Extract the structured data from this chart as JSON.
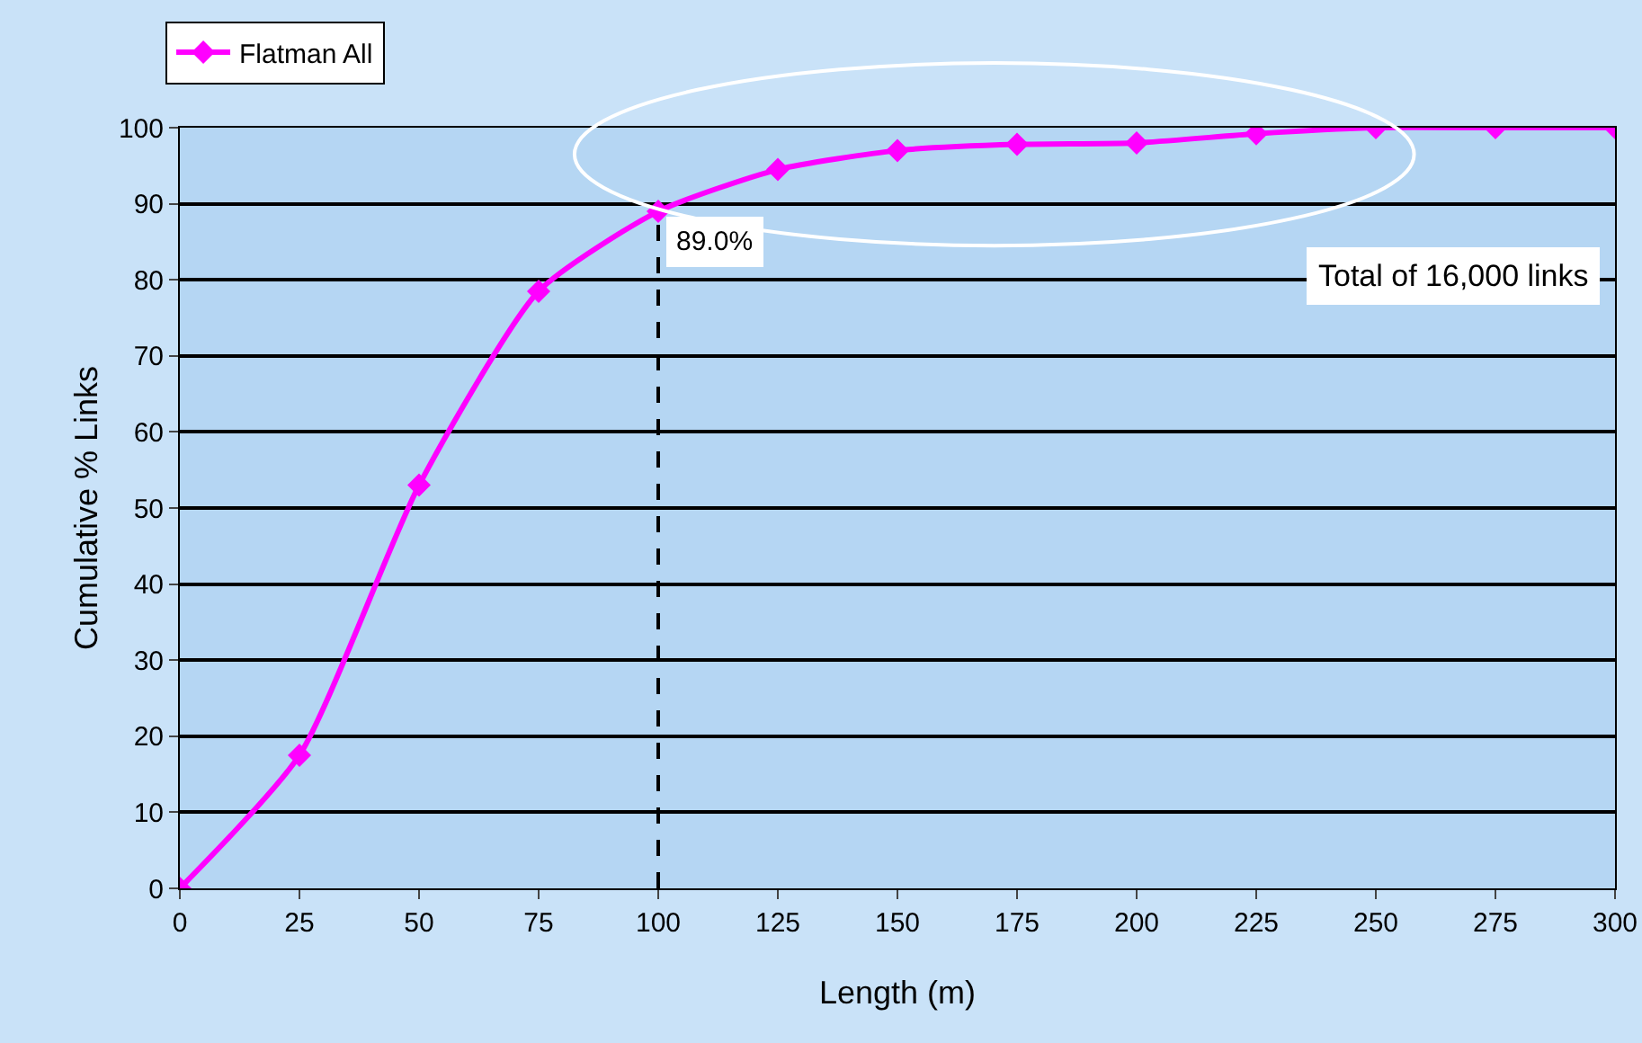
{
  "chart_data": {
    "type": "line",
    "xlabel": "Length (m)",
    "ylabel": "Cumulative % Links",
    "x": [
      0,
      25,
      50,
      75,
      100,
      125,
      150,
      175,
      200,
      225,
      250,
      275,
      300
    ],
    "series": [
      {
        "name": "Flatman All",
        "color": "#ff00ff",
        "values": [
          0,
          17.5,
          53,
          78.5,
          89,
          94.5,
          97,
          97.8,
          98,
          99.2,
          100,
          100,
          100
        ]
      }
    ],
    "xlim": [
      0,
      300
    ],
    "xticks": [
      0,
      25,
      50,
      75,
      100,
      125,
      150,
      175,
      200,
      225,
      250,
      275,
      300
    ],
    "ylim": [
      0,
      100
    ],
    "yticks": [
      0,
      10,
      20,
      30,
      40,
      50,
      60,
      70,
      80,
      90,
      100
    ],
    "grid": "y",
    "legend": "top left",
    "marker": "diamond",
    "line_style": "solid",
    "ref_lines": [
      {
        "axis": "x",
        "value": 100,
        "color": "#000000",
        "line_style": "dashed"
      }
    ],
    "annotations": [
      "Total of 16,000 links",
      {
        "text": "89.0%",
        "x": 100,
        "y": 89
      }
    ]
  }
}
